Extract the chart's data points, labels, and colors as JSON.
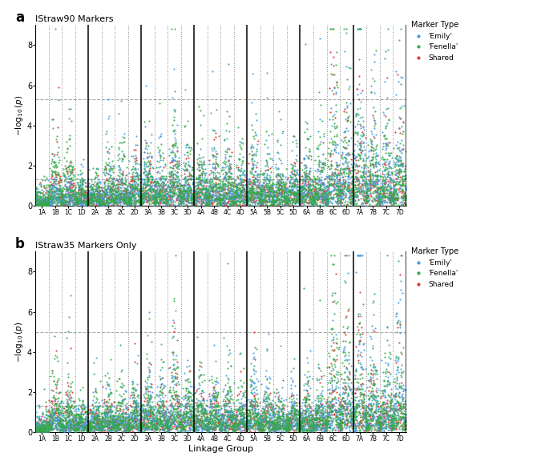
{
  "title_a": "IStraw90 Markers",
  "title_b": "IStraw35 Markers Only",
  "xlabel": "Linkage Group",
  "ylabel": "$-\\log_{10}(p)$",
  "color_emily": "#4499dd",
  "color_fenella": "#33aa44",
  "color_shared": "#dd3333",
  "hline_upper_a": 5.3,
  "hline_lower": 1.3,
  "hline_upper_b": 5.0,
  "ylim": [
    0,
    9
  ],
  "yticks": [
    0,
    2,
    4,
    6,
    8
  ],
  "linkage_groups": [
    "1A",
    "1B",
    "1C",
    "1D",
    "2A",
    "2B",
    "2C",
    "2D",
    "3A",
    "3B",
    "3C",
    "3D",
    "4A",
    "4B",
    "4C",
    "4D",
    "5A",
    "5B",
    "5C",
    "5D",
    "6A",
    "6B",
    "6C",
    "6D",
    "7A",
    "7B",
    "7C",
    "7D"
  ],
  "solid_dividers": [
    0,
    4,
    8,
    12,
    16,
    20,
    24,
    28
  ],
  "markers_per_lg": 120,
  "peak_lgs_a": {
    "1B": {
      "emily": 0.8,
      "fenella": 3.2,
      "shared": 2.4
    },
    "1C": {
      "emily": 0.8,
      "fenella": 2.8,
      "shared": 2.0
    },
    "1D": {
      "emily": 0.8,
      "fenella": 1.0,
      "shared": 0.8
    },
    "2A": {
      "emily": 0.8,
      "fenella": 1.0,
      "shared": 0.8
    },
    "2B": {
      "emily": 1.8,
      "fenella": 2.2,
      "shared": 1.5
    },
    "2C": {
      "emily": 1.5,
      "fenella": 2.0,
      "shared": 1.2
    },
    "2D": {
      "emily": 2.0,
      "fenella": 1.5,
      "shared": 1.8
    },
    "3A": {
      "emily": 3.0,
      "fenella": 2.5,
      "shared": 2.0
    },
    "3B": {
      "emily": 2.0,
      "fenella": 1.8,
      "shared": 1.5
    },
    "3C": {
      "emily": 3.5,
      "fenella": 3.8,
      "shared": 3.2
    },
    "3D": {
      "emily": 2.0,
      "fenella": 2.2,
      "shared": 1.5
    },
    "4A": {
      "emily": 1.8,
      "fenella": 2.5,
      "shared": 1.2
    },
    "4B": {
      "emily": 2.2,
      "fenella": 2.0,
      "shared": 1.8
    },
    "4C": {
      "emily": 2.0,
      "fenella": 2.5,
      "shared": 1.5
    },
    "4D": {
      "emily": 1.5,
      "fenella": 1.8,
      "shared": 1.2
    },
    "5A": {
      "emily": 2.5,
      "fenella": 2.2,
      "shared": 1.8
    },
    "5B": {
      "emily": 2.0,
      "fenella": 1.8,
      "shared": 1.2
    },
    "5C": {
      "emily": 1.5,
      "fenella": 1.5,
      "shared": 1.0
    },
    "5D": {
      "emily": 1.8,
      "fenella": 1.5,
      "shared": 1.2
    },
    "6A": {
      "emily": 2.0,
      "fenella": 2.5,
      "shared": 1.8
    },
    "6B": {
      "emily": 1.8,
      "fenella": 2.0,
      "shared": 1.5
    },
    "6C": {
      "emily": 3.5,
      "fenella": 7.0,
      "shared": 5.0
    },
    "6D": {
      "emily": 4.2,
      "fenella": 5.5,
      "shared": 4.0
    },
    "7A": {
      "emily": 6.8,
      "fenella": 5.0,
      "shared": 4.5
    },
    "7B": {
      "emily": 4.0,
      "fenella": 3.5,
      "shared": 3.0
    },
    "7C": {
      "emily": 3.0,
      "fenella": 4.0,
      "shared": 2.5
    },
    "7D": {
      "emily": 5.5,
      "fenella": 3.5,
      "shared": 3.5
    }
  },
  "peak_lgs_b": {
    "1B": {
      "emily": 0.8,
      "fenella": 2.5,
      "shared": 2.0
    },
    "1C": {
      "emily": 0.8,
      "fenella": 2.2,
      "shared": 1.8
    },
    "1D": {
      "emily": 0.8,
      "fenella": 1.0,
      "shared": 0.8
    },
    "2A": {
      "emily": 0.8,
      "fenella": 1.0,
      "shared": 0.8
    },
    "2B": {
      "emily": 1.5,
      "fenella": 2.0,
      "shared": 1.2
    },
    "2C": {
      "emily": 1.2,
      "fenella": 1.8,
      "shared": 1.0
    },
    "2D": {
      "emily": 1.8,
      "fenella": 1.5,
      "shared": 1.5
    },
    "3A": {
      "emily": 2.5,
      "fenella": 2.0,
      "shared": 1.8
    },
    "3B": {
      "emily": 1.8,
      "fenella": 1.5,
      "shared": 1.2
    },
    "3C": {
      "emily": 3.2,
      "fenella": 3.5,
      "shared": 2.8
    },
    "3D": {
      "emily": 1.8,
      "fenella": 2.0,
      "shared": 1.5
    },
    "4A": {
      "emily": 1.5,
      "fenella": 2.0,
      "shared": 1.0
    },
    "4B": {
      "emily": 2.0,
      "fenella": 1.8,
      "shared": 1.5
    },
    "4C": {
      "emily": 1.8,
      "fenella": 2.2,
      "shared": 1.2
    },
    "4D": {
      "emily": 1.2,
      "fenella": 1.5,
      "shared": 1.0
    },
    "5A": {
      "emily": 2.0,
      "fenella": 2.0,
      "shared": 1.5
    },
    "5B": {
      "emily": 1.8,
      "fenella": 1.5,
      "shared": 1.0
    },
    "5C": {
      "emily": 1.2,
      "fenella": 1.2,
      "shared": 0.8
    },
    "5D": {
      "emily": 1.5,
      "fenella": 1.2,
      "shared": 1.0
    },
    "6A": {
      "emily": 1.8,
      "fenella": 2.0,
      "shared": 1.5
    },
    "6B": {
      "emily": 1.5,
      "fenella": 1.8,
      "shared": 1.2
    },
    "6C": {
      "emily": 3.0,
      "fenella": 7.5,
      "shared": 4.5
    },
    "6D": {
      "emily": 3.8,
      "fenella": 5.0,
      "shared": 3.5
    },
    "7A": {
      "emily": 6.5,
      "fenella": 4.5,
      "shared": 4.0
    },
    "7B": {
      "emily": 3.5,
      "fenella": 3.0,
      "shared": 2.5
    },
    "7C": {
      "emily": 2.5,
      "fenella": 3.5,
      "shared": 2.0
    },
    "7D": {
      "emily": 5.0,
      "fenella": 3.0,
      "shared": 3.0
    }
  }
}
